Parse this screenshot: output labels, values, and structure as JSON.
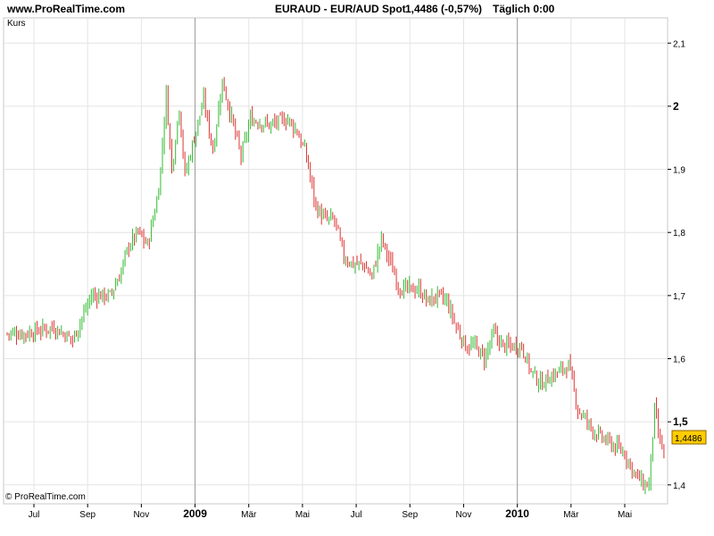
{
  "header": {
    "site": "www.ProRealTime.com",
    "symbol": "EURAUD - EUR/AUD Spot",
    "quote": "1,4486 (-0,57%)",
    "timeframe": "Täglich  0:00"
  },
  "chart_data": {
    "type": "candlestick",
    "title": "EURAUD - EUR/AUD Spot",
    "series_label": "Kurs",
    "copyright": "© ProRealTime.com",
    "last_price_label": "1,4486",
    "ylim": [
      1.37,
      2.14
    ],
    "grid": true,
    "colors": {
      "up": "#33bb33",
      "down": "#dd3333",
      "grid": "#e4e4e4",
      "separator": "#999999",
      "last_price_bg": "#ffcc00"
    },
    "y_ticks": [
      {
        "value": 1.4,
        "label": "1,4",
        "bold": false
      },
      {
        "value": 1.5,
        "label": "1,5",
        "bold": true
      },
      {
        "value": 1.6,
        "label": "1,6",
        "bold": false
      },
      {
        "value": 1.7,
        "label": "1,7",
        "bold": false
      },
      {
        "value": 1.8,
        "label": "1,8",
        "bold": false
      },
      {
        "value": 1.9,
        "label": "1,9",
        "bold": false
      },
      {
        "value": 2.0,
        "label": "2",
        "bold": true
      },
      {
        "value": 2.1,
        "label": "2,1",
        "bold": false
      }
    ],
    "x_ticks": [
      {
        "label": "Jul",
        "bold": false,
        "sep": false
      },
      {
        "label": "Sep",
        "bold": false,
        "sep": false
      },
      {
        "label": "Nov",
        "bold": false,
        "sep": false
      },
      {
        "label": "2009",
        "bold": true,
        "sep": true
      },
      {
        "label": "Mär",
        "bold": false,
        "sep": false
      },
      {
        "label": "Mai",
        "bold": false,
        "sep": false
      },
      {
        "label": "Jul",
        "bold": false,
        "sep": false
      },
      {
        "label": "Sep",
        "bold": false,
        "sep": false
      },
      {
        "label": "Nov",
        "bold": false,
        "sep": false
      },
      {
        "label": "2010",
        "bold": true,
        "sep": true
      },
      {
        "label": "Mär",
        "bold": false,
        "sep": false
      },
      {
        "label": "Mai",
        "bold": false,
        "sep": false
      }
    ],
    "path": [
      [
        0,
        1.64
      ],
      [
        10,
        1.64
      ],
      [
        25,
        1.65
      ],
      [
        35,
        1.63
      ],
      [
        45,
        1.7
      ],
      [
        55,
        1.7
      ],
      [
        60,
        1.73
      ],
      [
        65,
        1.78
      ],
      [
        70,
        1.8
      ],
      [
        75,
        1.78
      ],
      [
        80,
        1.85
      ],
      [
        82,
        1.9
      ],
      [
        85,
        2.02
      ],
      [
        88,
        1.9
      ],
      [
        92,
        2.0
      ],
      [
        95,
        1.89
      ],
      [
        100,
        1.95
      ],
      [
        105,
        2.01
      ],
      [
        110,
        1.93
      ],
      [
        115,
        2.04
      ],
      [
        120,
        1.98
      ],
      [
        125,
        1.92
      ],
      [
        130,
        1.98
      ],
      [
        140,
        1.97
      ],
      [
        150,
        1.98
      ],
      [
        155,
        1.96
      ],
      [
        160,
        1.92
      ],
      [
        165,
        1.84
      ],
      [
        170,
        1.82
      ],
      [
        175,
        1.82
      ],
      [
        180,
        1.76
      ],
      [
        185,
        1.75
      ],
      [
        190,
        1.75
      ],
      [
        195,
        1.73
      ],
      [
        200,
        1.79
      ],
      [
        205,
        1.75
      ],
      [
        210,
        1.71
      ],
      [
        215,
        1.71
      ],
      [
        220,
        1.71
      ],
      [
        225,
        1.69
      ],
      [
        230,
        1.7
      ],
      [
        235,
        1.69
      ],
      [
        240,
        1.65
      ],
      [
        245,
        1.62
      ],
      [
        250,
        1.62
      ],
      [
        255,
        1.6
      ],
      [
        260,
        1.64
      ],
      [
        265,
        1.62
      ],
      [
        270,
        1.62
      ],
      [
        275,
        1.62
      ],
      [
        280,
        1.58
      ],
      [
        285,
        1.56
      ],
      [
        290,
        1.57
      ],
      [
        295,
        1.58
      ],
      [
        300,
        1.59
      ],
      [
        305,
        1.52
      ],
      [
        310,
        1.5
      ],
      [
        315,
        1.48
      ],
      [
        320,
        1.47
      ],
      [
        325,
        1.46
      ],
      [
        330,
        1.45
      ],
      [
        335,
        1.42
      ],
      [
        340,
        1.4
      ],
      [
        343,
        1.4
      ],
      [
        346,
        1.52
      ],
      [
        348,
        1.48
      ],
      [
        351,
        1.4486
      ]
    ]
  }
}
